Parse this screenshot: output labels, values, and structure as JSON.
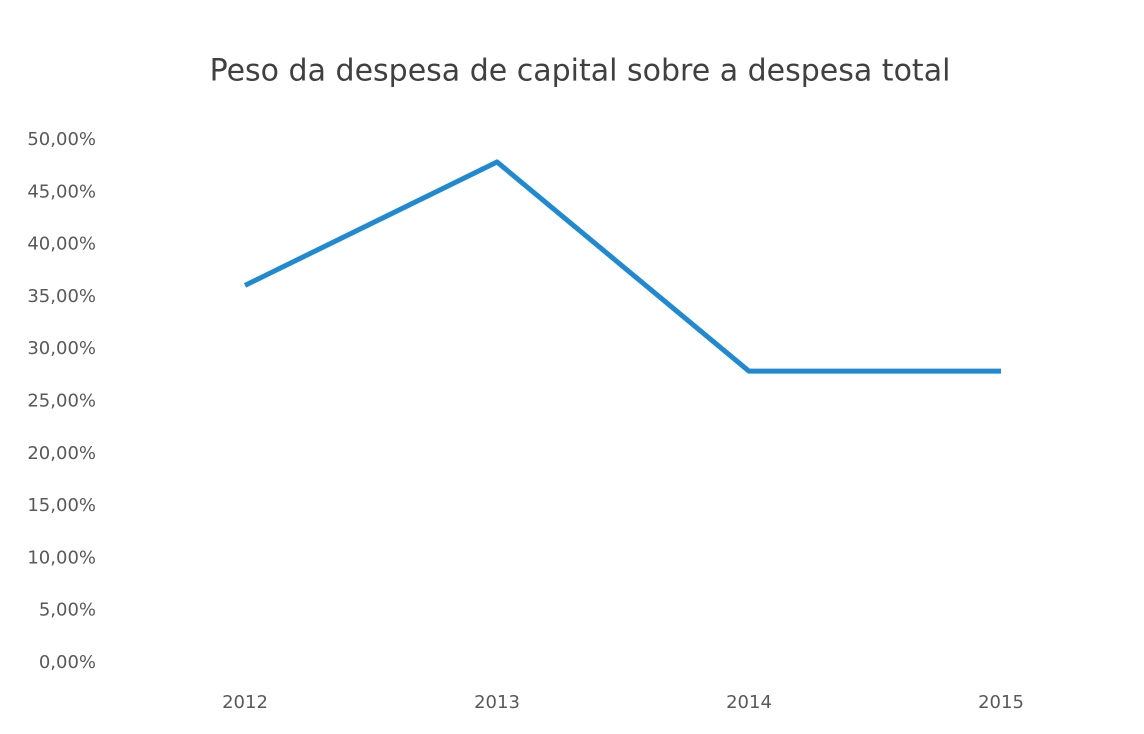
{
  "chart_data": {
    "type": "line",
    "title": "Peso da despesa de capital sobre a despesa total",
    "categories": [
      "2012",
      "2013",
      "2014",
      "2015"
    ],
    "series": [
      {
        "color": "#1f8ad2",
        "values": [
          36.1,
          47.9,
          27.9,
          27.9
        ]
      }
    ],
    "ylim": [
      0,
      50
    ],
    "yticks": [
      {
        "value": 0,
        "label": "0,00%"
      },
      {
        "value": 5,
        "label": "5,00%"
      },
      {
        "value": 10,
        "label": "10,00%"
      },
      {
        "value": 15,
        "label": "15,00%"
      },
      {
        "value": 20,
        "label": "20,00%"
      },
      {
        "value": 25,
        "label": "25,00%"
      },
      {
        "value": 30,
        "label": "30,00%"
      },
      {
        "value": 35,
        "label": "35,00%"
      },
      {
        "value": 40,
        "label": "40,00%"
      },
      {
        "value": 45,
        "label": "45,00%"
      },
      {
        "value": 50,
        "label": "50,00%"
      }
    ],
    "grid": false
  }
}
